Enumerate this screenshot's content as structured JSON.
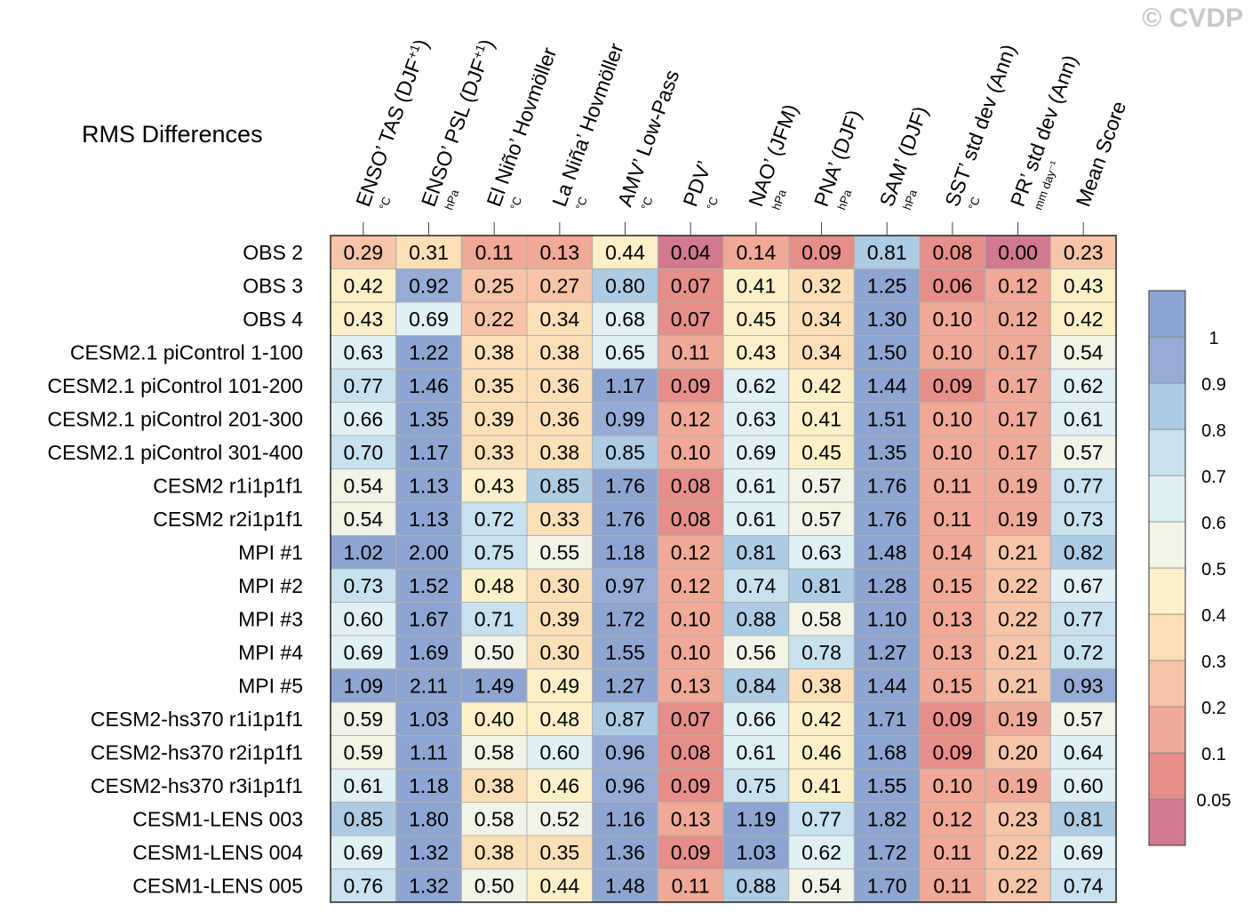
{
  "figure": {
    "title": "RMS Differences",
    "copyright": "© CVDP"
  },
  "chart_data": {
    "type": "heatmap",
    "title": "RMS Differences",
    "columns": [
      {
        "label": "ENSO’ TAS (DJF",
        "sup": "+1",
        "tail": ")",
        "unit": "°C"
      },
      {
        "label": "ENSO’ PSL (DJF",
        "sup": "+1",
        "tail": ")",
        "unit": "hPa"
      },
      {
        "label": "El Niño’ Hovmöller",
        "sup": "",
        "tail": "",
        "unit": "°C"
      },
      {
        "label": "La Niña’ Hovmöller",
        "sup": "",
        "tail": "",
        "unit": "°C"
      },
      {
        "label": "AMV’ Low-Pass",
        "sup": "",
        "tail": "",
        "unit": "°C"
      },
      {
        "label": "PDV’",
        "sup": "",
        "tail": "",
        "unit": "°C"
      },
      {
        "label": "NAO’ (JFM)",
        "sup": "",
        "tail": "",
        "unit": "hPa"
      },
      {
        "label": "PNA’ (DJF)",
        "sup": "",
        "tail": "",
        "unit": "hPa"
      },
      {
        "label": "SAM’ (DJF)",
        "sup": "",
        "tail": "",
        "unit": "hPa"
      },
      {
        "label": "SST’ std dev (Ann)",
        "sup": "",
        "tail": "",
        "unit": "°C"
      },
      {
        "label": "PR’ std dev (Ann)",
        "sup": "",
        "tail": "",
        "unit": "mm day⁻¹"
      },
      {
        "label": "Mean Score",
        "sup": "",
        "tail": "",
        "unit": ""
      }
    ],
    "rows": [
      "OBS 2",
      "OBS 3",
      "OBS 4",
      "CESM2.1 piControl 1-100",
      "CESM2.1 piControl 101-200",
      "CESM2.1 piControl 201-300",
      "CESM2.1 piControl 301-400",
      "CESM2 r1i1p1f1",
      "CESM2 r2i1p1f1",
      "MPI #1",
      "MPI #2",
      "MPI #3",
      "MPI #4",
      "MPI #5",
      "CESM2-hs370 r1i1p1f1",
      "CESM2-hs370 r2i1p1f1",
      "CESM2-hs370 r3i1p1f1",
      "CESM1-LENS 003",
      "CESM1-LENS 004",
      "CESM1-LENS 005"
    ],
    "values": [
      [
        "0.29",
        "0.31",
        "0.11",
        "0.13",
        "0.44",
        "0.04",
        "0.14",
        "0.09",
        "0.81",
        "0.08",
        "0.00",
        "0.23"
      ],
      [
        "0.42",
        "0.92",
        "0.25",
        "0.27",
        "0.80",
        "0.07",
        "0.41",
        "0.32",
        "1.25",
        "0.06",
        "0.12",
        "0.43"
      ],
      [
        "0.43",
        "0.69",
        "0.22",
        "0.34",
        "0.68",
        "0.07",
        "0.45",
        "0.34",
        "1.30",
        "0.10",
        "0.12",
        "0.42"
      ],
      [
        "0.63",
        "1.22",
        "0.38",
        "0.38",
        "0.65",
        "0.11",
        "0.43",
        "0.34",
        "1.50",
        "0.10",
        "0.17",
        "0.54"
      ],
      [
        "0.77",
        "1.46",
        "0.35",
        "0.36",
        "1.17",
        "0.09",
        "0.62",
        "0.42",
        "1.44",
        "0.09",
        "0.17",
        "0.62"
      ],
      [
        "0.66",
        "1.35",
        "0.39",
        "0.36",
        "0.99",
        "0.12",
        "0.63",
        "0.41",
        "1.51",
        "0.10",
        "0.17",
        "0.61"
      ],
      [
        "0.70",
        "1.17",
        "0.33",
        "0.38",
        "0.85",
        "0.10",
        "0.69",
        "0.45",
        "1.35",
        "0.10",
        "0.17",
        "0.57"
      ],
      [
        "0.54",
        "1.13",
        "0.43",
        "0.85",
        "1.76",
        "0.08",
        "0.61",
        "0.57",
        "1.76",
        "0.11",
        "0.19",
        "0.77"
      ],
      [
        "0.54",
        "1.13",
        "0.72",
        "0.33",
        "1.76",
        "0.08",
        "0.61",
        "0.57",
        "1.76",
        "0.11",
        "0.19",
        "0.73"
      ],
      [
        "1.02",
        "2.00",
        "0.75",
        "0.55",
        "1.18",
        "0.12",
        "0.81",
        "0.63",
        "1.48",
        "0.14",
        "0.21",
        "0.82"
      ],
      [
        "0.73",
        "1.52",
        "0.48",
        "0.30",
        "0.97",
        "0.12",
        "0.74",
        "0.81",
        "1.28",
        "0.15",
        "0.22",
        "0.67"
      ],
      [
        "0.60",
        "1.67",
        "0.71",
        "0.39",
        "1.72",
        "0.10",
        "0.88",
        "0.58",
        "1.10",
        "0.13",
        "0.22",
        "0.77"
      ],
      [
        "0.69",
        "1.69",
        "0.50",
        "0.30",
        "1.55",
        "0.10",
        "0.56",
        "0.78",
        "1.27",
        "0.13",
        "0.21",
        "0.72"
      ],
      [
        "1.09",
        "2.11",
        "1.49",
        "0.49",
        "1.27",
        "0.13",
        "0.84",
        "0.38",
        "1.44",
        "0.15",
        "0.21",
        "0.93"
      ],
      [
        "0.59",
        "1.03",
        "0.40",
        "0.48",
        "0.87",
        "0.07",
        "0.66",
        "0.42",
        "1.71",
        "0.09",
        "0.19",
        "0.57"
      ],
      [
        "0.59",
        "1.11",
        "0.58",
        "0.60",
        "0.96",
        "0.08",
        "0.61",
        "0.46",
        "1.68",
        "0.09",
        "0.20",
        "0.64"
      ],
      [
        "0.61",
        "1.18",
        "0.38",
        "0.46",
        "0.96",
        "0.09",
        "0.75",
        "0.41",
        "1.55",
        "0.10",
        "0.19",
        "0.60"
      ],
      [
        "0.85",
        "1.80",
        "0.58",
        "0.52",
        "1.16",
        "0.13",
        "1.19",
        "0.77",
        "1.82",
        "0.12",
        "0.23",
        "0.81"
      ],
      [
        "0.69",
        "1.32",
        "0.38",
        "0.35",
        "1.36",
        "0.09",
        "1.03",
        "0.62",
        "1.72",
        "0.11",
        "0.22",
        "0.69"
      ],
      [
        "0.76",
        "1.32",
        "0.50",
        "0.44",
        "1.48",
        "0.11",
        "0.88",
        "0.54",
        "1.70",
        "0.11",
        "0.22",
        "0.74"
      ]
    ],
    "colorbar": {
      "levels": [
        0.05,
        0.1,
        0.2,
        0.3,
        0.4,
        0.5,
        0.6,
        0.7,
        0.8,
        0.9,
        1
      ],
      "tick_labels": [
        "0.05",
        "0.1",
        "0.2",
        "0.3",
        "0.4",
        "0.5",
        "0.6",
        "0.7",
        "0.8",
        "0.9",
        "1"
      ],
      "colors": [
        "#d1798f",
        "#e58e8a",
        "#f0a996",
        "#f7c4a7",
        "#fcdfb7",
        "#fdf0c8",
        "#f3f4e8",
        "#e0f0f5",
        "#c8e1ee",
        "#adcbe3",
        "#96acd4",
        "#8fa5d1"
      ]
    },
    "grid": true
  }
}
